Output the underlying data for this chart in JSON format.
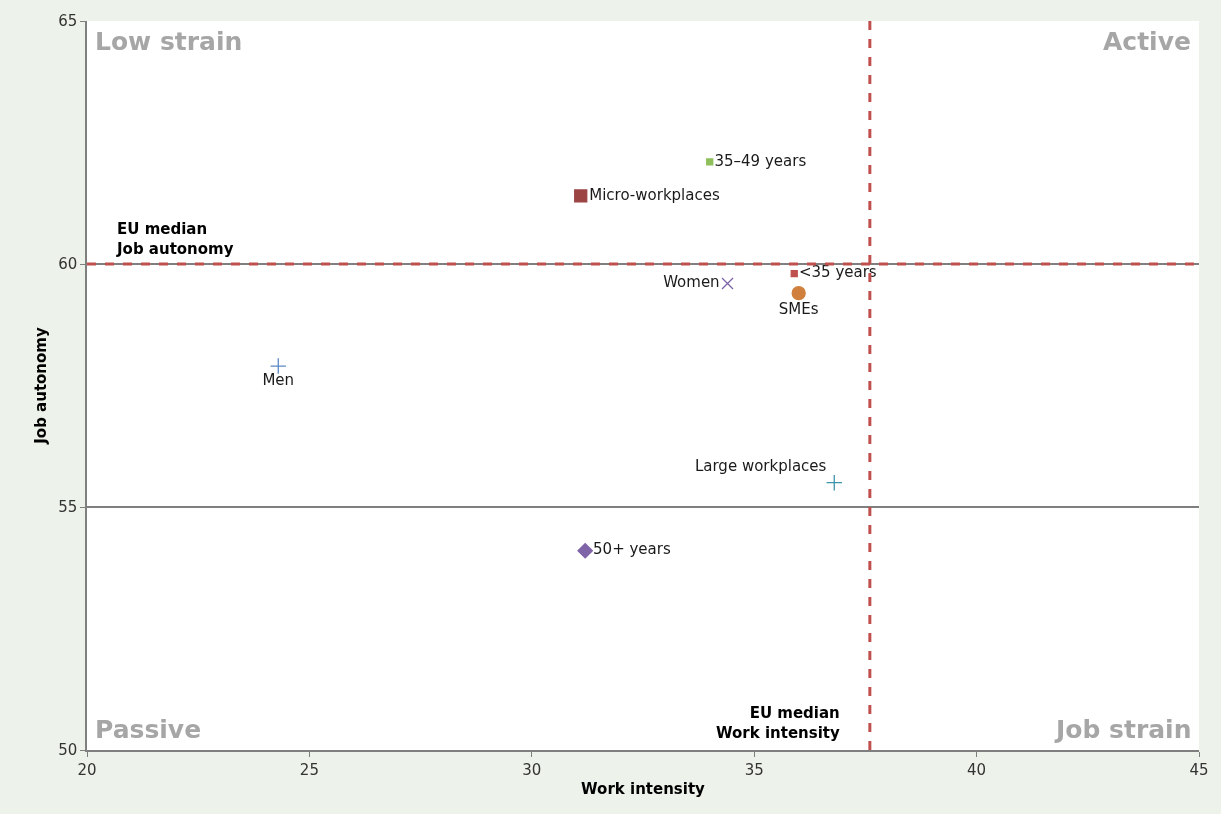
{
  "chart_data": {
    "type": "scatter",
    "xlabel": "Work intensity",
    "ylabel": "Job autonomy",
    "xlim": [
      20,
      45
    ],
    "xticks": [
      20,
      25,
      30,
      35,
      40,
      45
    ],
    "ylim": [
      50,
      65
    ],
    "yticks": [
      50,
      55,
      60,
      65
    ],
    "grid": "y",
    "series": [
      {
        "name": "35–49 years",
        "color": "#8dbf5a",
        "marker": "square",
        "x": [
          34.0
        ],
        "values": [
          62.1
        ]
      },
      {
        "name": "Micro-workplaces",
        "color": "#9c4444",
        "marker": "square",
        "x": [
          31.1
        ],
        "values": [
          61.4
        ]
      },
      {
        "name": "<35 years",
        "color": "#c0504d",
        "marker": "square",
        "x": [
          35.9
        ],
        "values": [
          59.8
        ]
      },
      {
        "name": "Women",
        "color": "#7a63a8",
        "marker": "x",
        "x": [
          34.4
        ],
        "values": [
          59.6
        ]
      },
      {
        "name": "SMEs",
        "color": "#d0803c",
        "marker": "circle",
        "x": [
          36.0
        ],
        "values": [
          59.4
        ]
      },
      {
        "name": "Men",
        "color": "#5b8ac6",
        "marker": "cross",
        "x": [
          24.3
        ],
        "values": [
          57.9
        ]
      },
      {
        "name": "Large workplaces",
        "color": "#3b94aa",
        "marker": "cross",
        "x": [
          36.8
        ],
        "values": [
          55.5
        ]
      },
      {
        "name": "50+ years",
        "color": "#8064a8",
        "marker": "diamond",
        "x": [
          31.2
        ],
        "values": [
          54.1
        ]
      }
    ],
    "ref_lines": [
      {
        "axis": "y",
        "value": 60,
        "label": "EU median\nJob autonomy",
        "color": "#c0504d",
        "line_style": "dashed"
      },
      {
        "axis": "x",
        "value": 37.6,
        "label": "EU median\nWork intensity",
        "color": "#c0504d",
        "line_style": "dashed"
      }
    ],
    "annotations": [
      "Low strain",
      "Active",
      "Passive",
      "Job strain"
    ]
  }
}
